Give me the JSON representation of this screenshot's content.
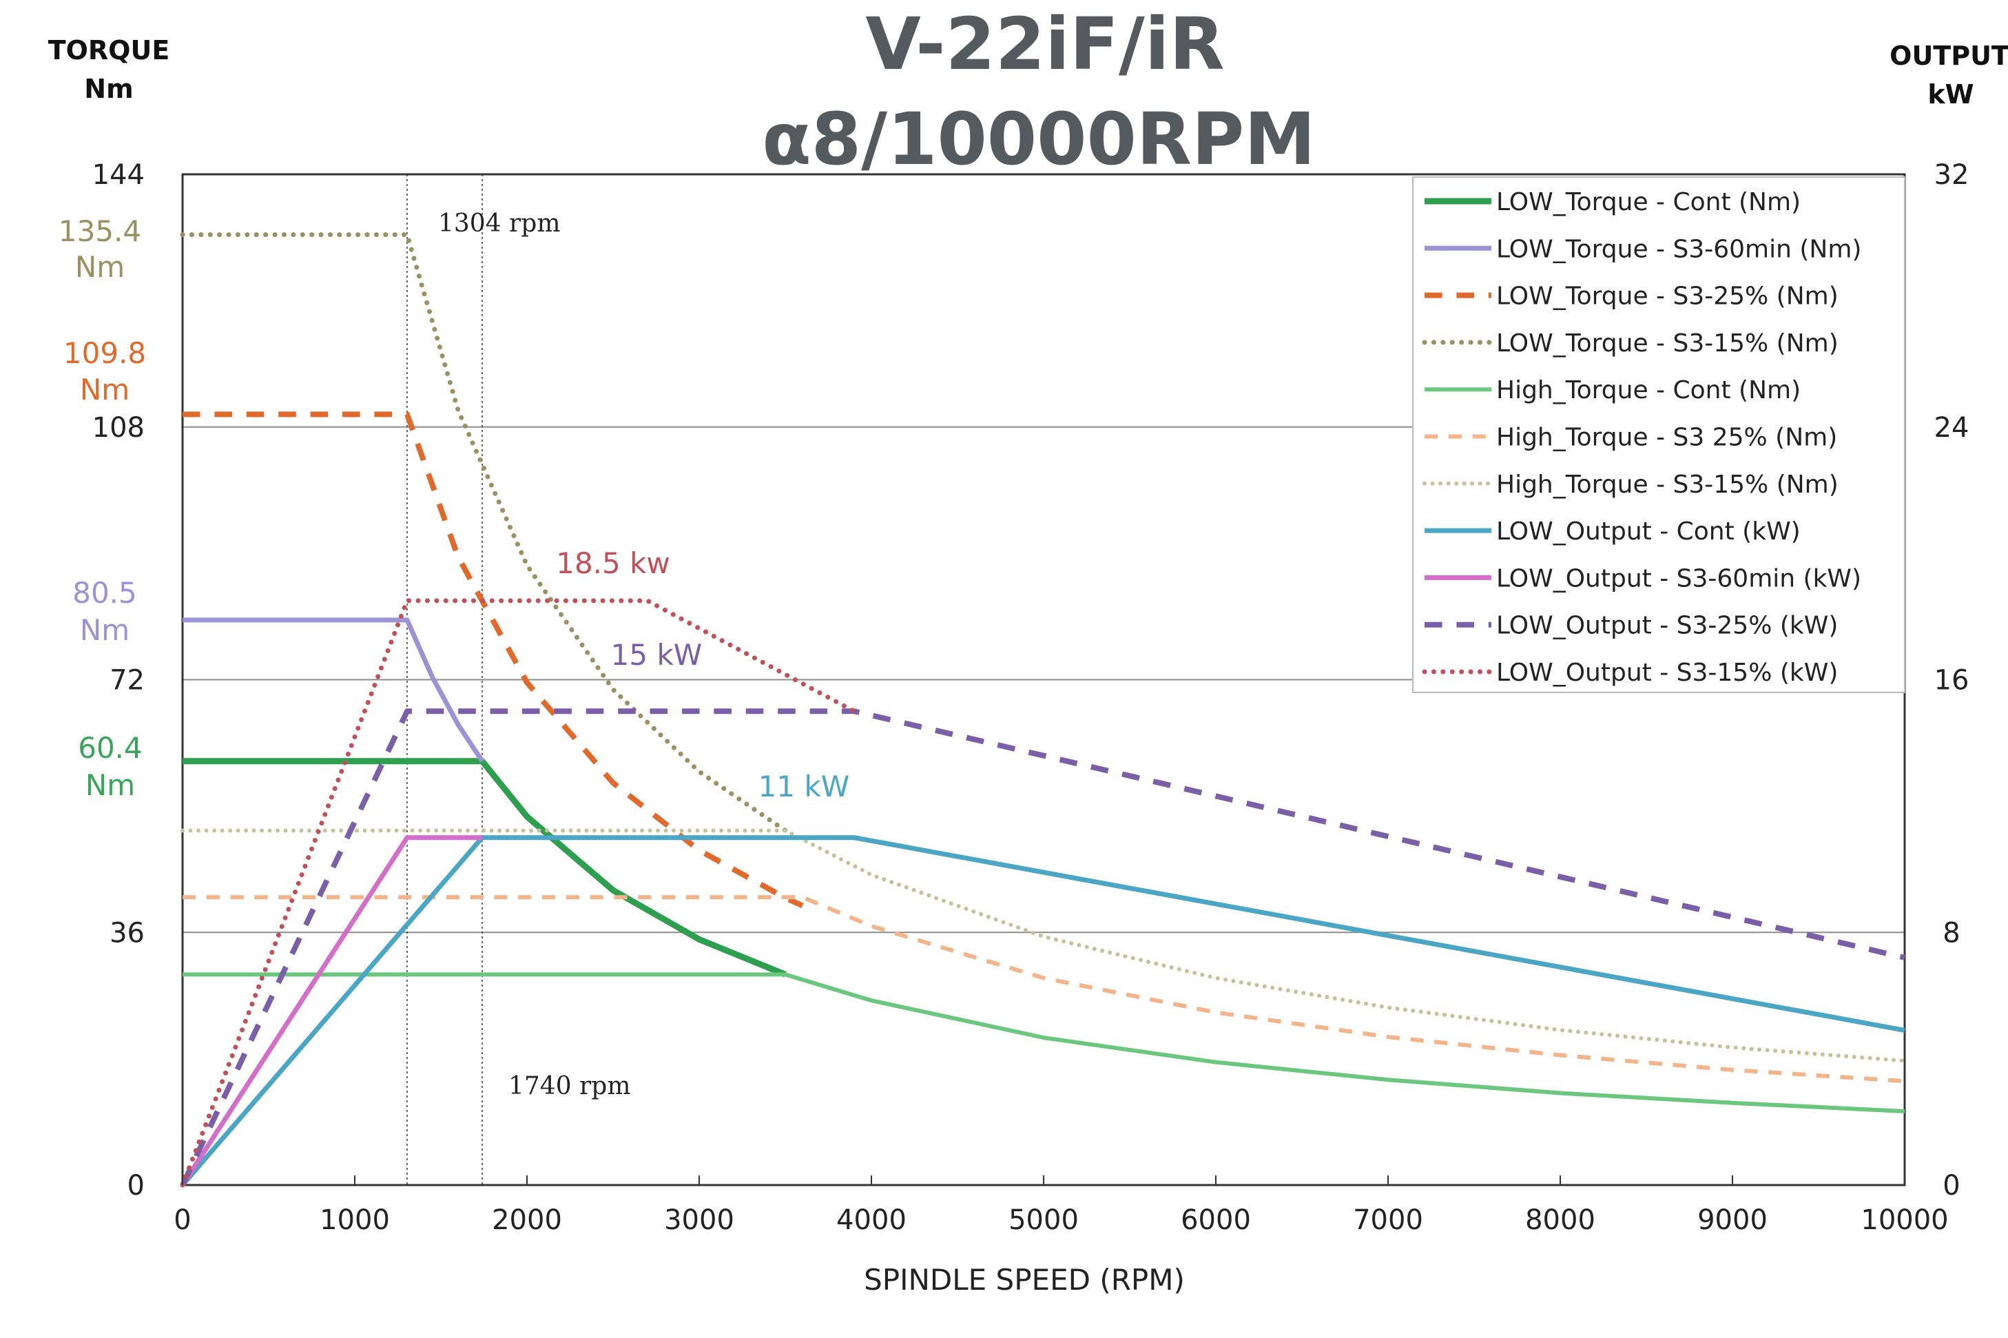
{
  "chart_data": {
    "type": "line",
    "title": [
      "V-22iF/iR",
      "α8/10000RPM"
    ],
    "left_axis": {
      "label_line1": "TORQUE",
      "label_line2": "Nm",
      "range": [
        0,
        144
      ],
      "ticks": [
        "0",
        "36",
        "72",
        "108",
        "144"
      ],
      "tick_values": [
        0,
        36,
        72,
        108,
        144
      ]
    },
    "right_axis": {
      "label_line1": "OUTPUT",
      "label_line2": "kW",
      "range": [
        0,
        32
      ],
      "ticks": [
        "0",
        "8",
        "16",
        "24",
        "32"
      ],
      "tick_values": [
        0,
        8,
        16,
        24,
        32
      ]
    },
    "x_axis": {
      "label": "SPINDLE SPEED (RPM)",
      "range": [
        0,
        10000
      ],
      "ticks": [
        "0",
        "1000",
        "2000",
        "3000",
        "4000",
        "5000",
        "6000",
        "7000",
        "8000",
        "9000",
        "10000"
      ],
      "tick_values": [
        0,
        1000,
        2000,
        3000,
        4000,
        5000,
        6000,
        7000,
        8000,
        9000,
        10000
      ]
    },
    "grid": {
      "horizontal": true,
      "vertical": false
    },
    "legend_position": "top-right",
    "vertical_markers": [
      {
        "x": 1304,
        "label": "1304 rpm"
      },
      {
        "x": 1740,
        "label": "1740 rpm"
      }
    ],
    "annotations": {
      "left": [
        {
          "lines": [
            "135.4",
            "Nm"
          ],
          "color": "#9a9162"
        },
        {
          "lines": [
            "109.8",
            "Nm"
          ],
          "color": "#e06a2c"
        },
        {
          "lines": [
            "80.5",
            "Nm"
          ],
          "color": "#9b93d6"
        },
        {
          "lines": [
            "60.4",
            "Nm"
          ],
          "color": "#3aa55a"
        }
      ],
      "inline": [
        {
          "text": "18.5 kw",
          "color": "#c0505a"
        },
        {
          "text": "15 kW",
          "color": "#7a5fa8"
        },
        {
          "text": "11 kW",
          "color": "#4aa6c4"
        }
      ]
    },
    "series": [
      {
        "name": "LOW_Torque - Cont (Nm)",
        "axis": "left",
        "color": "#2e9e4f",
        "dash": "solid",
        "width": 9,
        "points": [
          [
            0,
            60.4
          ],
          [
            1740,
            60.4
          ],
          [
            2000,
            52.5
          ],
          [
            2500,
            42.0
          ],
          [
            3000,
            35.0
          ],
          [
            3500,
            30.0
          ]
        ]
      },
      {
        "name": "LOW_Torque - S3-60min (Nm)",
        "axis": "left",
        "color": "#9b93d6",
        "dash": "solid",
        "width": 7,
        "points": [
          [
            0,
            80.5
          ],
          [
            1304,
            80.5
          ],
          [
            1450,
            72.4
          ],
          [
            1600,
            65.6
          ],
          [
            1740,
            60.4
          ]
        ]
      },
      {
        "name": "LOW_Torque - S3-25% (Nm)",
        "axis": "left",
        "color": "#e06a2c",
        "dash": "dash",
        "width": 8,
        "points": [
          [
            0,
            109.8
          ],
          [
            1304,
            109.8
          ],
          [
            1600,
            89.5
          ],
          [
            2000,
            71.6
          ],
          [
            2500,
            57.3
          ],
          [
            3000,
            47.7
          ],
          [
            3500,
            40.9
          ],
          [
            3600,
            39.8
          ]
        ]
      },
      {
        "name": "LOW_Torque - S3-15% (Nm)",
        "axis": "left",
        "color": "#9a9162",
        "dash": "dot",
        "width": 7,
        "points": [
          [
            0,
            135.4
          ],
          [
            1304,
            135.4
          ],
          [
            1600,
            110.4
          ],
          [
            2000,
            88.3
          ],
          [
            2500,
            70.6
          ],
          [
            3000,
            58.9
          ],
          [
            3500,
            50.5
          ]
        ]
      },
      {
        "name": "High_Torque - Cont (Nm)",
        "axis": "left",
        "color": "#6cc77e",
        "dash": "solid",
        "width": 6,
        "points": [
          [
            0,
            30.0
          ],
          [
            3500,
            30.0
          ],
          [
            4000,
            26.3
          ],
          [
            5000,
            21.0
          ],
          [
            6000,
            17.5
          ],
          [
            7000,
            15.0
          ],
          [
            8000,
            13.1
          ],
          [
            9000,
            11.7
          ],
          [
            10000,
            10.5
          ]
        ]
      },
      {
        "name": "High_Torque - S3 25% (Nm)",
        "axis": "left",
        "color": "#f4b48a",
        "dash": "dash",
        "width": 6,
        "points": [
          [
            0,
            41.0
          ],
          [
            3600,
            41.0
          ],
          [
            4000,
            36.9
          ],
          [
            5000,
            29.5
          ],
          [
            6000,
            24.6
          ],
          [
            7000,
            21.1
          ],
          [
            8000,
            18.5
          ],
          [
            9000,
            16.4
          ],
          [
            10000,
            14.8
          ]
        ]
      },
      {
        "name": "High_Torque - S3-15% (Nm)",
        "axis": "left",
        "color": "#c7c19a",
        "dash": "dot",
        "width": 6,
        "points": [
          [
            0,
            50.5
          ],
          [
            3500,
            50.5
          ],
          [
            4000,
            44.2
          ],
          [
            5000,
            35.4
          ],
          [
            6000,
            29.5
          ],
          [
            7000,
            25.3
          ],
          [
            8000,
            22.1
          ],
          [
            9000,
            19.6
          ],
          [
            10000,
            17.7
          ]
        ]
      },
      {
        "name": "LOW_Output - Cont (kW)",
        "axis": "right",
        "color": "#4aa6c4",
        "dash": "solid",
        "width": 7,
        "points": [
          [
            0,
            0
          ],
          [
            1740,
            11.0
          ],
          [
            3900,
            11.0
          ],
          [
            10000,
            4.9
          ]
        ]
      },
      {
        "name": "LOW_Output - S3-60min (kW)",
        "axis": "right",
        "color": "#d36fc9",
        "dash": "solid",
        "width": 7,
        "points": [
          [
            0,
            0
          ],
          [
            1304,
            11.0
          ],
          [
            1740,
            11.0
          ]
        ]
      },
      {
        "name": "LOW_Output - S3-25% (kW)",
        "axis": "right",
        "color": "#7a5fa8",
        "dash": "dash",
        "width": 8,
        "points": [
          [
            0,
            0
          ],
          [
            1304,
            15.0
          ],
          [
            3900,
            15.0
          ],
          [
            10000,
            7.2
          ]
        ]
      },
      {
        "name": "LOW_Output - S3-15% (kW)",
        "axis": "right",
        "color": "#c0505a",
        "dash": "dot",
        "width": 7,
        "points": [
          [
            0,
            0
          ],
          [
            1304,
            18.5
          ],
          [
            2700,
            18.5
          ],
          [
            3900,
            15.0
          ]
        ]
      }
    ]
  }
}
